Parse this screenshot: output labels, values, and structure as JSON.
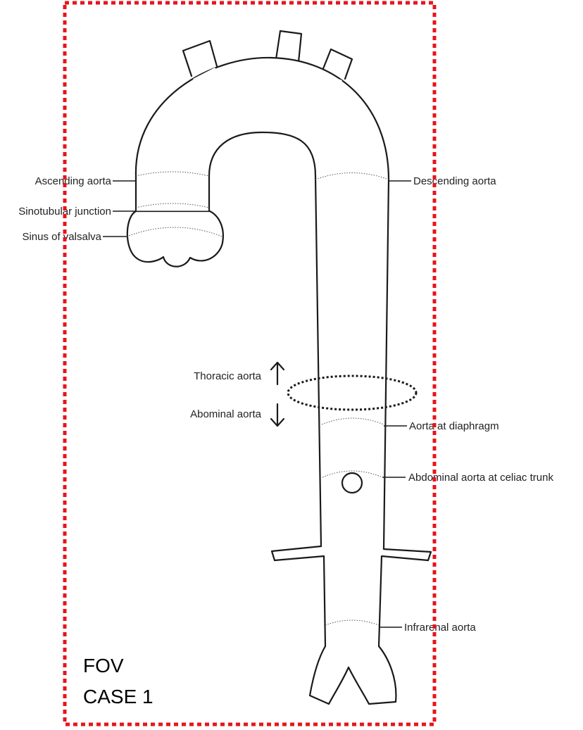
{
  "labels": {
    "ascending_aorta": "Ascending aorta",
    "sinotubular_junction": "Sinotubular junction",
    "sinus_of_valsalva": "Sinus of valsalva",
    "descending_aorta": "Descending aorta",
    "thoracic_aorta": "Thoracic aorta",
    "abdominal_aorta": "Abominal aorta",
    "aorta_at_diaphragm": "Aorta at diaphragm",
    "celiac_trunk": "Abdominal aorta at celiac trunk",
    "infrarenal_aorta": "Infrarenal aorta"
  },
  "caption": {
    "line1": "FOV",
    "line2": "CASE 1"
  },
  "colors": {
    "fov_box": "#e8141b",
    "diaphragm_ring": "#1a1a1a",
    "outline": "#1a1a1a"
  }
}
